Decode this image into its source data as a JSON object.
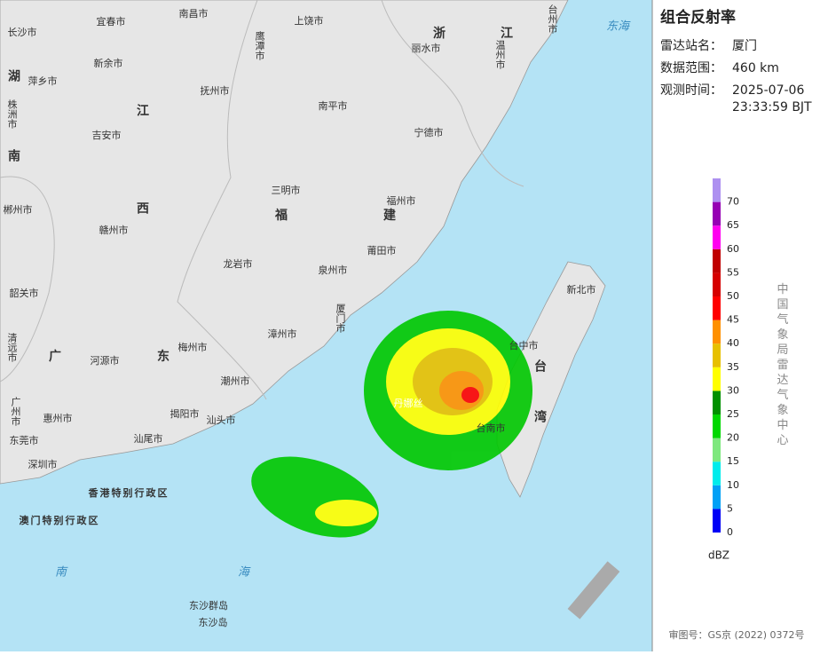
{
  "map": {
    "provinces": [
      "湖南",
      "江西",
      "福建",
      "广东",
      "浙江",
      "台湾"
    ],
    "seas": [
      "东海",
      "南海"
    ],
    "cities": [
      "宜春市",
      "南昌市",
      "上饶市",
      "鹰潭市",
      "丽水市",
      "温州市",
      "台州市",
      "长沙市",
      "萍乡市",
      "新余市",
      "抚州市",
      "株洲市",
      "吉安市",
      "南平市",
      "宁德市",
      "三明市",
      "福州市",
      "赣州市",
      "郴州市",
      "龙岩市",
      "莆田市",
      "泉州市",
      "厦门市",
      "韶关市",
      "清远市",
      "河源市",
      "梅州市",
      "漳州市",
      "潮州市",
      "揭阳市",
      "汕头市",
      "汕尾市",
      "惠州市",
      "广州市",
      "东莞市",
      "深圳市",
      "新北市",
      "台中市",
      "台南市",
      "香港特别行政区",
      "澳门特别行政区",
      "东沙群岛",
      "东沙岛"
    ],
    "typhoon": "丹娜丝"
  },
  "panel": {
    "title": "组合反射率",
    "rows": [
      {
        "label": "雷达站名：",
        "value": "厦门"
      },
      {
        "label": "数据范围：",
        "value": "460 km"
      },
      {
        "label": "观测时间：",
        "value": "2025-07-06"
      }
    ],
    "time_line2": "23:33:59 BJT"
  },
  "legend": {
    "unit": "dBZ",
    "source": "中国气象局雷达气象中心",
    "ticks": [
      0,
      5,
      10,
      15,
      20,
      25,
      30,
      35,
      40,
      45,
      50,
      55,
      60,
      65,
      70
    ],
    "colors": [
      "#0000f6",
      "#01a0f6",
      "#00ecec",
      "#7ee87e",
      "#00d800",
      "#019000",
      "#ffff00",
      "#e7c000",
      "#ff9000",
      "#ff0000",
      "#d60000",
      "#c00000",
      "#ff00f0",
      "#9600b4",
      "#ad90f0"
    ]
  },
  "footer": "审图号：GS京 (2022) 0372号"
}
